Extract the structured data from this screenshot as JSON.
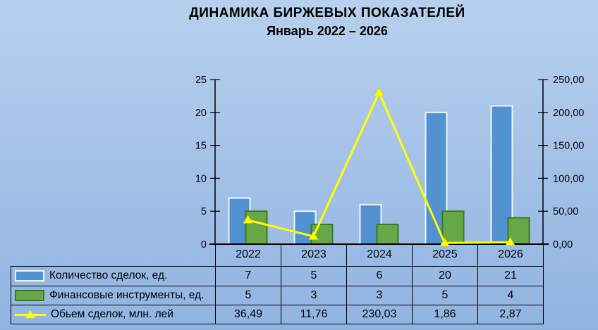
{
  "title": "ДИНАМИКА БИРЖЕВЫХ ПОКАЗАТЕЛЕЙ",
  "subtitle": "Январь 2022 – 2026",
  "chart_data": {
    "type": "bar",
    "subtype": "combo-bar-line",
    "categories": [
      "2022",
      "2023",
      "2024",
      "2025",
      "2026"
    ],
    "series": [
      {
        "name": "Количество сделок, ед.",
        "type": "bar",
        "axis": "left",
        "values": [
          7,
          5,
          6,
          20,
          21
        ],
        "color": "#5292d1",
        "border": "#eef5fc",
        "swatch": "sw-blue"
      },
      {
        "name": "Финансовые инструменты, ед.",
        "type": "bar",
        "axis": "left",
        "values": [
          5,
          3,
          3,
          5,
          4
        ],
        "color": "#68a747",
        "border": "#3b7a1e",
        "swatch": "sw-green"
      },
      {
        "name": "Обьем сделок, млн. лей",
        "type": "line",
        "axis": "right",
        "values": [
          36.49,
          11.76,
          230.03,
          1.86,
          2.87
        ],
        "color": "#ffff00",
        "swatch": "sw-line"
      }
    ],
    "left_axis": {
      "min": 0,
      "max": 25,
      "tick_labels": [
        "0",
        "5",
        "10",
        "15",
        "20",
        "25"
      ]
    },
    "right_axis": {
      "min": 0,
      "max": 250,
      "tick_labels": [
        "0,00",
        "50,00",
        "100,00",
        "150,00",
        "200,00",
        "250,00"
      ]
    },
    "grid": false,
    "legend_position": "table-left",
    "table_values": [
      [
        "7",
        "5",
        "6",
        "20",
        "21"
      ],
      [
        "5",
        "3",
        "3",
        "5",
        "4"
      ],
      [
        "36,49",
        "11,76",
        "230,03",
        "1,86",
        "2,87"
      ]
    ]
  }
}
